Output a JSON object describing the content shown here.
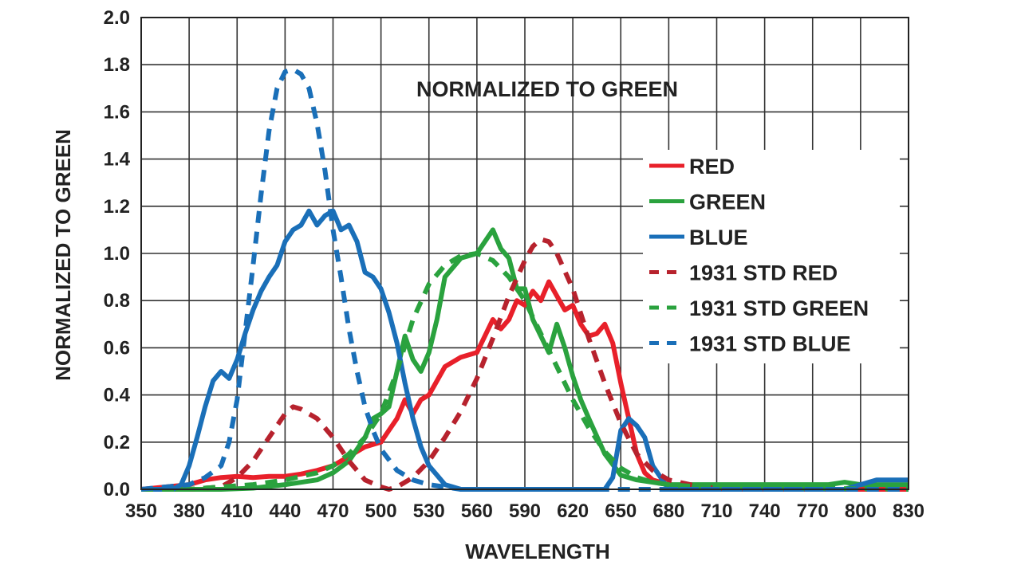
{
  "chart_data": {
    "type": "line",
    "title": "",
    "annotation": "NORMALIZED TO GREEN",
    "xlabel": "WAVELENGTH",
    "ylabel": "NORMALIZED TO GREEN",
    "xlim": [
      350,
      830
    ],
    "ylim": [
      0,
      2.0
    ],
    "xticks": [
      "350",
      "380",
      "410",
      "440",
      "470",
      "500",
      "530",
      "560",
      "590",
      "620",
      "650",
      "680",
      "710",
      "740",
      "770",
      "800",
      "830"
    ],
    "yticks": [
      "0.0",
      "0.2",
      "0.4",
      "0.6",
      "0.8",
      "1.0",
      "1.2",
      "1.4",
      "1.6",
      "1.8",
      "2.0"
    ],
    "grid": true,
    "legend_position": "right",
    "series": [
      {
        "name": "RED",
        "color": "#e8202a",
        "style": "solid",
        "x": [
          350,
          380,
          390,
          400,
          410,
          420,
          430,
          440,
          450,
          460,
          470,
          480,
          490,
          500,
          505,
          510,
          515,
          520,
          525,
          530,
          540,
          550,
          560,
          570,
          575,
          580,
          585,
          590,
          595,
          600,
          605,
          610,
          615,
          620,
          625,
          630,
          635,
          640,
          645,
          650,
          655,
          660,
          665,
          670,
          680,
          700,
          720,
          740,
          760,
          780,
          800,
          830
        ],
        "y": [
          0.0,
          0.02,
          0.04,
          0.05,
          0.055,
          0.05,
          0.055,
          0.055,
          0.065,
          0.08,
          0.1,
          0.14,
          0.18,
          0.2,
          0.25,
          0.3,
          0.38,
          0.32,
          0.38,
          0.4,
          0.52,
          0.56,
          0.58,
          0.72,
          0.68,
          0.72,
          0.8,
          0.78,
          0.84,
          0.8,
          0.88,
          0.82,
          0.76,
          0.78,
          0.7,
          0.65,
          0.66,
          0.7,
          0.62,
          0.45,
          0.3,
          0.15,
          0.07,
          0.04,
          0.02,
          0.01,
          0.0,
          0.0,
          0.0,
          0.0,
          0.0,
          0.0
        ]
      },
      {
        "name": "GREEN",
        "color": "#2aa23e",
        "style": "solid",
        "x": [
          350,
          380,
          400,
          420,
          440,
          460,
          470,
          480,
          490,
          495,
          500,
          505,
          510,
          515,
          520,
          525,
          530,
          535,
          540,
          550,
          560,
          565,
          570,
          575,
          580,
          585,
          590,
          595,
          600,
          605,
          610,
          615,
          620,
          625,
          630,
          640,
          650,
          660,
          670,
          680,
          700,
          740,
          780,
          790,
          800,
          830
        ],
        "y": [
          0.0,
          0.0,
          0.0,
          0.005,
          0.02,
          0.04,
          0.07,
          0.12,
          0.22,
          0.3,
          0.32,
          0.35,
          0.5,
          0.65,
          0.55,
          0.5,
          0.58,
          0.72,
          0.9,
          0.98,
          1.0,
          1.05,
          1.1,
          1.02,
          0.98,
          0.85,
          0.85,
          0.72,
          0.65,
          0.58,
          0.7,
          0.6,
          0.48,
          0.38,
          0.3,
          0.15,
          0.06,
          0.04,
          0.03,
          0.02,
          0.02,
          0.02,
          0.02,
          0.03,
          0.02,
          0.02
        ]
      },
      {
        "name": "BLUE",
        "color": "#1a6fb8",
        "style": "solid",
        "x": [
          350,
          370,
          375,
          380,
          385,
          390,
          395,
          400,
          405,
          410,
          415,
          420,
          425,
          430,
          435,
          440,
          445,
          450,
          455,
          460,
          465,
          470,
          475,
          480,
          485,
          490,
          495,
          500,
          505,
          510,
          515,
          520,
          525,
          530,
          535,
          540,
          545,
          550,
          555,
          560,
          640,
          645,
          650,
          655,
          660,
          665,
          670,
          680,
          700,
          790,
          800,
          810,
          820,
          830
        ],
        "y": [
          0.0,
          0.0,
          0.02,
          0.1,
          0.22,
          0.35,
          0.46,
          0.5,
          0.47,
          0.55,
          0.66,
          0.76,
          0.84,
          0.9,
          0.95,
          1.05,
          1.1,
          1.12,
          1.18,
          1.12,
          1.16,
          1.18,
          1.1,
          1.12,
          1.05,
          0.92,
          0.9,
          0.85,
          0.75,
          0.62,
          0.45,
          0.3,
          0.18,
          0.1,
          0.06,
          0.02,
          0.01,
          0.0,
          0.0,
          0.0,
          0.0,
          0.05,
          0.25,
          0.3,
          0.27,
          0.22,
          0.1,
          0.0,
          0.0,
          0.0,
          0.02,
          0.04,
          0.04,
          0.04
        ]
      },
      {
        "name": "1931 STD RED",
        "color": "#b7222d",
        "style": "dashed",
        "x": [
          350,
          380,
          400,
          410,
          420,
          430,
          440,
          445,
          450,
          460,
          470,
          480,
          490,
          500,
          505,
          510,
          520,
          530,
          540,
          550,
          560,
          570,
          580,
          590,
          595,
          600,
          605,
          610,
          620,
          630,
          640,
          650,
          660,
          670,
          680,
          700,
          720,
          830
        ],
        "y": [
          0.0,
          0.0,
          0.01,
          0.05,
          0.12,
          0.22,
          0.32,
          0.35,
          0.34,
          0.3,
          0.22,
          0.12,
          0.04,
          0.01,
          0.0,
          0.01,
          0.05,
          0.12,
          0.22,
          0.33,
          0.47,
          0.64,
          0.82,
          0.97,
          1.03,
          1.06,
          1.05,
          1.0,
          0.85,
          0.64,
          0.45,
          0.28,
          0.15,
          0.08,
          0.04,
          0.01,
          0.0,
          0.0
        ]
      },
      {
        "name": "1931 STD GREEN",
        "color": "#2aa23e",
        "style": "dashed",
        "x": [
          350,
          380,
          400,
          420,
          440,
          460,
          470,
          480,
          490,
          500,
          510,
          520,
          530,
          540,
          550,
          560,
          570,
          580,
          590,
          600,
          610,
          620,
          630,
          640,
          650,
          660,
          670,
          680,
          700,
          830
        ],
        "y": [
          0.0,
          0.0,
          0.01,
          0.02,
          0.04,
          0.07,
          0.1,
          0.15,
          0.22,
          0.32,
          0.5,
          0.72,
          0.87,
          0.95,
          0.99,
          1.0,
          0.97,
          0.9,
          0.8,
          0.66,
          0.52,
          0.38,
          0.26,
          0.16,
          0.09,
          0.05,
          0.03,
          0.02,
          0.01,
          0.0
        ]
      },
      {
        "name": "1931 STD BLUE",
        "color": "#1a6fb8",
        "style": "dashed",
        "x": [
          350,
          380,
          390,
          400,
          405,
          410,
          420,
          425,
          430,
          435,
          440,
          445,
          450,
          455,
          460,
          465,
          470,
          475,
          480,
          485,
          490,
          495,
          500,
          510,
          520,
          530,
          540,
          550,
          560,
          830
        ],
        "y": [
          0.0,
          0.02,
          0.05,
          0.1,
          0.2,
          0.38,
          0.95,
          1.25,
          1.52,
          1.7,
          1.77,
          1.78,
          1.76,
          1.7,
          1.55,
          1.35,
          1.1,
          0.9,
          0.68,
          0.5,
          0.35,
          0.25,
          0.17,
          0.08,
          0.04,
          0.02,
          0.01,
          0.0,
          0.0,
          0.0
        ]
      }
    ]
  }
}
